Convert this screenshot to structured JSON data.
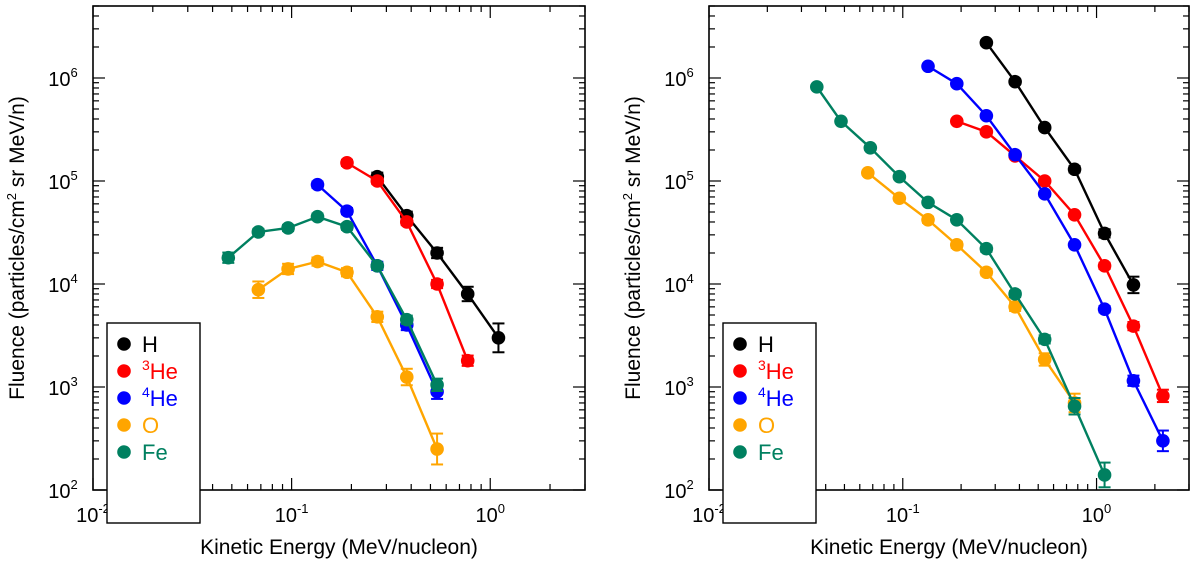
{
  "chart_data": [
    {
      "type": "line",
      "xlabel": "Kinetic Energy (MeV/nucleon)",
      "ylabel": "Fluence (particles/cm² sr MeV/n)",
      "ylabel_parts": {
        "pre": "Fluence (particles/cm",
        "sup": "2",
        "post": " sr MeV/n)"
      },
      "xscale": "log",
      "yscale": "log",
      "xlim": [
        0.01,
        3.0
      ],
      "ylim": [
        100,
        5000000
      ],
      "xticks": [
        {
          "base": "10",
          "exp": "-2",
          "value": 0.01
        },
        {
          "base": "10",
          "exp": "-1",
          "value": 0.1
        },
        {
          "base": "10",
          "exp": "0",
          "value": 1
        }
      ],
      "yticks": [
        {
          "base": "10",
          "exp": "2",
          "value": 100
        },
        {
          "base": "10",
          "exp": "3",
          "value": 1000
        },
        {
          "base": "10",
          "exp": "4",
          "value": 10000
        },
        {
          "base": "10",
          "exp": "5",
          "value": 100000
        },
        {
          "base": "10",
          "exp": "6",
          "value": 1000000
        }
      ],
      "legend_position": "bottom-left",
      "series": [
        {
          "name": "H",
          "sup": "",
          "color": "#000000",
          "x": [
            0.27,
            0.38,
            0.54,
            0.77,
            1.1
          ],
          "y": [
            110000,
            46000,
            20000,
            8000,
            3000
          ],
          "err": [
            0.04,
            0.04,
            0.05,
            0.07,
            0.14
          ]
        },
        {
          "name": "He",
          "sup": "3",
          "color": "#ff0000",
          "x": [
            0.19,
            0.27,
            0.38,
            0.54,
            0.77
          ],
          "y": [
            150000,
            100000,
            40000,
            10000,
            1800
          ],
          "err": [
            0.03,
            0.03,
            0.03,
            0.04,
            0.05
          ]
        },
        {
          "name": "He",
          "sup": "4",
          "color": "#0000ff",
          "x": [
            0.135,
            0.19,
            0.27,
            0.38,
            0.54
          ],
          "y": [
            92000,
            51000,
            15000,
            4000,
            900
          ],
          "err": [
            0.03,
            0.03,
            0.04,
            0.05,
            0.07
          ]
        },
        {
          "name": "O",
          "sup": "",
          "color": "#ffa500",
          "x": [
            0.068,
            0.096,
            0.135,
            0.19,
            0.27,
            0.38,
            0.54
          ],
          "y": [
            8800,
            14000,
            16500,
            13000,
            4800,
            1250,
            250
          ],
          "err": [
            0.08,
            0.05,
            0.04,
            0.04,
            0.05,
            0.08,
            0.15
          ]
        },
        {
          "name": "Fe",
          "sup": "",
          "color": "#008060",
          "x": [
            0.048,
            0.068,
            0.096,
            0.135,
            0.19,
            0.27,
            0.38,
            0.54
          ],
          "y": [
            18000,
            32000,
            35000,
            45000,
            36000,
            15000,
            4500,
            1050
          ],
          "err": [
            0.05,
            0.03,
            0.03,
            0.03,
            0.03,
            0.03,
            0.04,
            0.06
          ]
        }
      ]
    },
    {
      "type": "line",
      "xlabel": "Kinetic Energy (MeV/nucleon)",
      "ylabel": "Fluence (particles/cm² sr MeV/n)",
      "ylabel_parts": {
        "pre": "Fluence (particles/cm",
        "sup": "2",
        "post": " sr MeV/n)"
      },
      "xscale": "log",
      "yscale": "log",
      "xlim": [
        0.01,
        3.0
      ],
      "ylim": [
        100,
        5000000
      ],
      "xticks": [
        {
          "base": "10",
          "exp": "-2",
          "value": 0.01
        },
        {
          "base": "10",
          "exp": "-1",
          "value": 0.1
        },
        {
          "base": "10",
          "exp": "0",
          "value": 1
        }
      ],
      "yticks": [
        {
          "base": "10",
          "exp": "2",
          "value": 100
        },
        {
          "base": "10",
          "exp": "3",
          "value": 1000
        },
        {
          "base": "10",
          "exp": "4",
          "value": 10000
        },
        {
          "base": "10",
          "exp": "5",
          "value": 100000
        },
        {
          "base": "10",
          "exp": "6",
          "value": 1000000
        }
      ],
      "legend_position": "bottom-left",
      "series": [
        {
          "name": "H",
          "sup": "",
          "color": "#000000",
          "x": [
            0.27,
            0.38,
            0.54,
            0.77,
            1.1,
            1.55
          ],
          "y": [
            2200000,
            920000,
            330000,
            130000,
            31000,
            9800
          ],
          "err": [
            0.02,
            0.02,
            0.02,
            0.03,
            0.04,
            0.08
          ]
        },
        {
          "name": "He",
          "sup": "3",
          "color": "#ff0000",
          "x": [
            0.19,
            0.27,
            0.38,
            0.54,
            0.77,
            1.1,
            1.55,
            2.2
          ],
          "y": [
            380000,
            300000,
            175000,
            100000,
            47000,
            15000,
            3900,
            820
          ],
          "err": [
            0.02,
            0.02,
            0.02,
            0.02,
            0.02,
            0.03,
            0.04,
            0.06
          ]
        },
        {
          "name": "He",
          "sup": "4",
          "color": "#0000ff",
          "x": [
            0.135,
            0.19,
            0.27,
            0.38,
            0.54,
            0.77,
            1.1,
            1.55,
            2.2
          ],
          "y": [
            1300000,
            880000,
            430000,
            180000,
            75000,
            24000,
            5700,
            1150,
            300
          ],
          "err": [
            0.02,
            0.02,
            0.02,
            0.02,
            0.02,
            0.02,
            0.03,
            0.05,
            0.1
          ]
        },
        {
          "name": "O",
          "sup": "",
          "color": "#ffa500",
          "x": [
            0.066,
            0.096,
            0.135,
            0.19,
            0.27,
            0.38,
            0.54,
            0.77
          ],
          "y": [
            120000,
            68000,
            42000,
            24000,
            13000,
            6000,
            1850,
            700
          ],
          "err": [
            0.02,
            0.02,
            0.03,
            0.03,
            0.03,
            0.04,
            0.06,
            0.09
          ]
        },
        {
          "name": "Fe",
          "sup": "",
          "color": "#008060",
          "x": [
            0.036,
            0.048,
            0.068,
            0.096,
            0.135,
            0.19,
            0.27,
            0.38,
            0.54,
            0.77,
            1.1
          ],
          "y": [
            820000,
            380000,
            210000,
            110000,
            62000,
            42000,
            22000,
            8000,
            2900,
            650,
            140
          ],
          "err": [
            0.02,
            0.02,
            0.02,
            0.02,
            0.02,
            0.02,
            0.03,
            0.03,
            0.04,
            0.08,
            0.12
          ]
        }
      ]
    }
  ]
}
